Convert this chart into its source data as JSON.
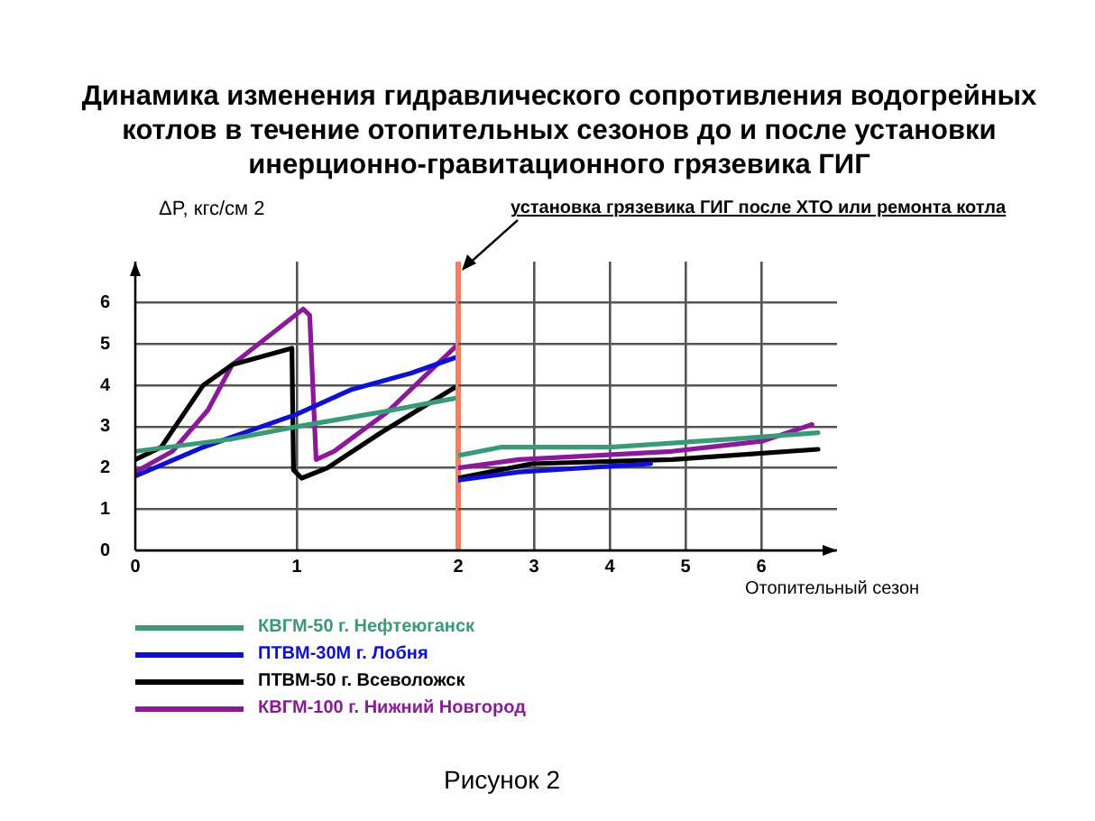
{
  "chart_data": [
    {
      "type": "line",
      "title": "Динамика изменения гидравлического сопротивления водогрейных котлов в течение отопительных сезонов до  и  после установки инерционно-гравитационного грязевика ГИГ",
      "ylabel": "ΔP, кгс/см 2",
      "xlim": [
        0,
        2
      ],
      "xticks": [
        0,
        1
      ],
      "ylim": [
        0,
        7
      ],
      "yticks": [
        0,
        1,
        2,
        3,
        4,
        5,
        6
      ],
      "grid": true,
      "legend": "bottom",
      "annotations": [
        "Рисунок 2"
      ],
      "ref_lines": [
        {
          "axis": "x",
          "value": 2,
          "label": "установка грязевика ГИГ после ХТО или ремонта котла",
          "color": "#f08060"
        }
      ],
      "series": [
        {
          "name": "КВГМ-50 г. Нефтеюганск",
          "color": "#3a9a78",
          "x": [
            0,
            0.6,
            1,
            1.52,
            2
          ],
          "values": [
            2.4,
            2.7,
            3.0,
            3.35,
            3.7
          ]
        },
        {
          "name": "ПТВМ-30М г. Лобня",
          "color": "#1010d0",
          "x": [
            0,
            0.42,
            1,
            1.34,
            1.71,
            2
          ],
          "values": [
            1.8,
            2.5,
            3.3,
            3.9,
            4.3,
            4.7
          ]
        },
        {
          "name": "ПТВМ-50 г. Всеволожск",
          "color": "#000000",
          "x": [
            0,
            0.16,
            0.42,
            0.6,
            0.97,
            0.98,
            1.03,
            1.19,
            1.52,
            2
          ],
          "values": [
            2.2,
            2.5,
            4.0,
            4.5,
            4.9,
            1.95,
            1.75,
            2.0,
            2.85,
            4.0
          ]
        },
        {
          "name": "КВГМ-100 г. Нижний Новгород",
          "color": "#8b1a9b",
          "x": [
            0,
            0.23,
            0.45,
            0.6,
            1.04,
            1.08,
            1.12,
            1.23,
            1.56,
            2
          ],
          "values": [
            1.9,
            2.4,
            3.4,
            4.5,
            5.85,
            5.7,
            2.2,
            2.4,
            3.35,
            5.0
          ]
        }
      ]
    },
    {
      "type": "line",
      "xlabel": "Отопительный сезон",
      "xlim": [
        2,
        7
      ],
      "xticks": [
        2,
        3,
        4,
        5,
        6
      ],
      "ylim": [
        0,
        7
      ],
      "yticks": [
        0,
        1,
        2,
        3,
        4,
        5,
        6
      ],
      "grid": true,
      "tick_labels": "x",
      "series": [
        {
          "color": "#3a9a78",
          "x": [
            2,
            2.56,
            4.01,
            5.62,
            6.75
          ],
          "values": [
            2.3,
            2.5,
            2.5,
            2.7,
            2.85
          ]
        },
        {
          "color": "#1010d0",
          "x": [
            2,
            2.8,
            4.54
          ],
          "values": [
            1.7,
            1.9,
            2.1
          ]
        },
        {
          "color": "#000000",
          "x": [
            2,
            2.97,
            4.82,
            6.75
          ],
          "values": [
            1.75,
            2.1,
            2.2,
            2.45
          ]
        },
        {
          "color": "#8b1a9b",
          "x": [
            2,
            2.8,
            4.82,
            6.02,
            6.67
          ],
          "values": [
            2.0,
            2.2,
            2.4,
            2.65,
            3.05
          ]
        }
      ]
    }
  ]
}
